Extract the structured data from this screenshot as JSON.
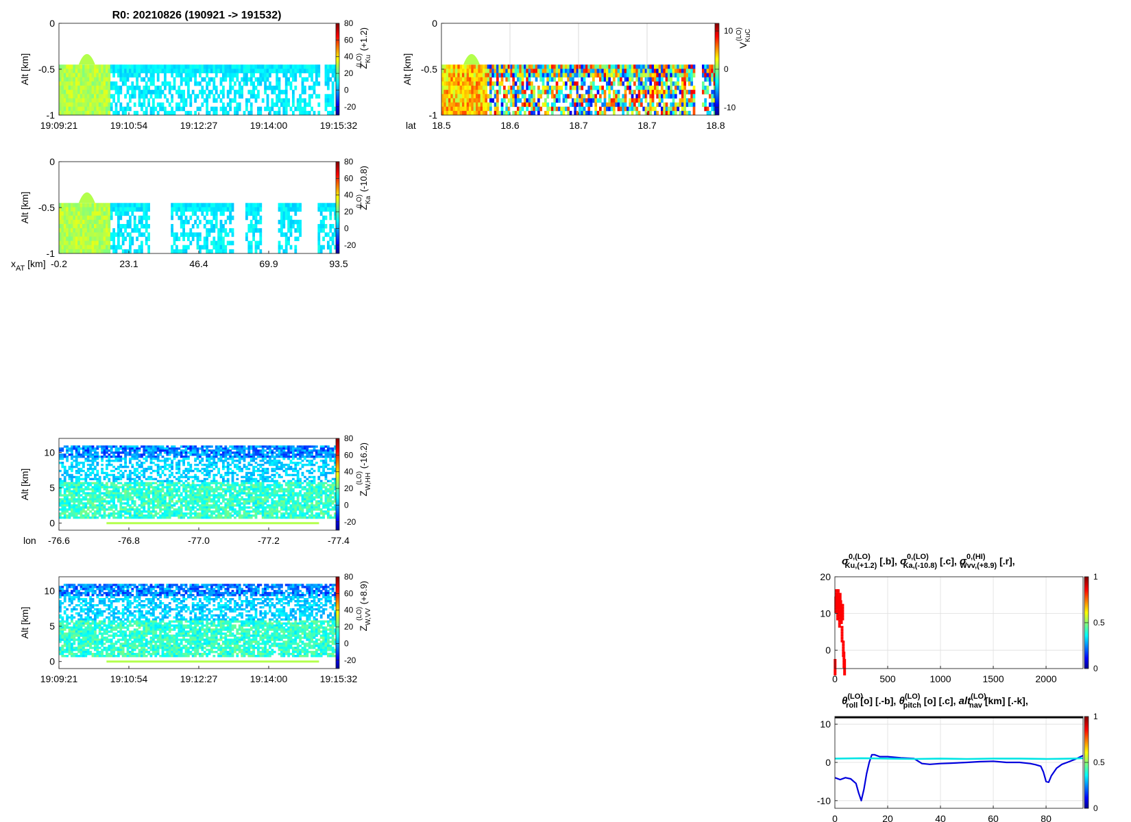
{
  "header": {
    "title": "R0:  20210826 (190921 -> 191532)"
  },
  "chart_data": [
    {
      "id": "zku",
      "type": "heatmap",
      "ylabel": "Alt [km]",
      "ylim": [
        -1,
        0
      ],
      "yticks": [
        0,
        -0.5,
        -1
      ],
      "xticklabels": [
        "19:09:21",
        "19:10:54",
        "19:12:27",
        "19:14:00",
        "19:15:32"
      ],
      "colorbar": {
        "label": "Z",
        "sup": "(LO)",
        "sub": "Ku",
        "offset": "(+1.2)",
        "range": [
          -30,
          80
        ],
        "ticks": [
          80,
          60,
          40,
          20,
          0,
          -20
        ]
      }
    },
    {
      "id": "vku",
      "type": "heatmap",
      "ylabel": "Alt [km]",
      "ylim": [
        -1,
        0
      ],
      "yticks": [
        0,
        -0.5,
        -1
      ],
      "xaxis_label": "lat",
      "xticklabels": [
        "18.5",
        "18.6",
        "18.7",
        "18.7",
        "18.8"
      ],
      "grid": true,
      "colorbar": {
        "label": "V",
        "sup": "(LO)",
        "sub": "KuC",
        "offset": "",
        "range": [
          -12,
          12
        ],
        "ticks": [
          10,
          0,
          -10
        ]
      }
    },
    {
      "id": "zka",
      "type": "heatmap",
      "ylabel": "Alt [km]",
      "ylim": [
        -1,
        0
      ],
      "yticks": [
        0,
        -0.5,
        -1
      ],
      "xaxis_label": "x",
      "xaxis_label_sub": "AT",
      "xaxis_label_unit": "[km]",
      "xticklabels": [
        "-0.2",
        "23.1",
        "46.4",
        "69.9",
        "93.5"
      ],
      "colorbar": {
        "label": "Z",
        "sup": "(LO)",
        "sub": "Ka",
        "offset": "(-10.8)",
        "range": [
          -30,
          80
        ],
        "ticks": [
          80,
          60,
          40,
          20,
          0,
          -20
        ]
      }
    },
    {
      "id": "zwhh",
      "type": "heatmap",
      "ylabel": "Alt [km]",
      "ylim": [
        -1,
        12
      ],
      "yticks": [
        10,
        5,
        0
      ],
      "xaxis_label": "lon",
      "xticklabels": [
        "-76.6",
        "-76.8",
        "-77.0",
        "-77.2",
        "-77.4"
      ],
      "colorbar": {
        "label": "Z",
        "sup": "(LO)",
        "sub": "W,HH",
        "offset": "(-16.2)",
        "range": [
          -30,
          80
        ],
        "ticks": [
          80,
          60,
          40,
          20,
          0,
          -20
        ]
      }
    },
    {
      "id": "zwvv",
      "type": "heatmap",
      "ylabel": "Alt [km]",
      "ylim": [
        -1,
        12
      ],
      "yticks": [
        10,
        5,
        0
      ],
      "xticklabels": [
        "19:09:21",
        "19:10:54",
        "19:12:27",
        "19:14:00",
        "19:15:32"
      ],
      "colorbar": {
        "label": "Z",
        "sup": "(LO)",
        "sub": "W,VV",
        "offset": "(+8.9)",
        "range": [
          -30,
          80
        ],
        "ticks": [
          80,
          60,
          40,
          20,
          0,
          -20
        ]
      }
    },
    {
      "id": "sigma",
      "type": "scatter",
      "title_parts": [
        {
          "sym": "σ",
          "sup": "0,(LO)",
          "sub": "Ku,(+1.2)",
          "tag": "[.b],",
          "color": "#0000ff"
        },
        {
          "sym": "σ",
          "sup": "0,(LO)",
          "sub": "Ka,(-10.8)",
          "tag": "[.c],",
          "color": "#00ffff"
        },
        {
          "sym": "σ",
          "sup": "0,(HI)",
          "sub": "Wvv,(+8.9)",
          "tag": "[.r],",
          "color": "#ff0000"
        }
      ],
      "xlim": [
        0,
        2350
      ],
      "ylim": [
        -5,
        20
      ],
      "xticks": [
        0,
        500,
        1000,
        1500,
        2000
      ],
      "yticks": [
        20,
        10,
        0
      ],
      "grid": true,
      "series": [
        {
          "color": "#ff0000",
          "x": [
            2,
            8,
            14,
            20,
            26,
            32,
            38,
            44,
            50,
            56,
            62,
            68,
            74,
            80,
            86,
            92
          ],
          "y": [
            -5,
            12,
            14,
            13,
            10,
            14,
            12,
            8,
            13,
            11,
            9,
            4,
            10,
            0,
            -3,
            -5
          ]
        }
      ],
      "colorbar": {
        "range": [
          0,
          1
        ],
        "ticks": [
          1,
          0.5,
          0
        ]
      }
    },
    {
      "id": "nav",
      "type": "line",
      "title_parts": [
        {
          "sym": "θ",
          "sup": "(LO)",
          "sub": "roll",
          "tag": "[o] [.-b],",
          "color": "#0000ff"
        },
        {
          "sym": "θ",
          "sup": "(LO)",
          "sub": "pitch",
          "tag": "[o] [.c],",
          "color": "#00ffff"
        },
        {
          "sym": "alt",
          "sup": "(LO)",
          "sub": "nav",
          "tag": "[km] [.-k],",
          "color": "#000000"
        }
      ],
      "xlim": [
        0,
        94
      ],
      "ylim": [
        -12,
        12
      ],
      "xticks": [
        0,
        20,
        40,
        60,
        80
      ],
      "yticks": [
        10,
        0,
        -10
      ],
      "grid": true,
      "series": [
        {
          "name": "roll",
          "color": "#0000dd",
          "x": [
            0,
            2,
            4,
            6,
            8,
            9,
            10,
            11,
            12,
            13,
            14,
            15,
            17,
            20,
            25,
            30,
            33,
            36,
            40,
            44,
            50,
            55,
            60,
            65,
            70,
            74,
            76,
            78,
            79,
            80,
            81,
            82,
            84,
            86,
            88,
            91,
            94
          ],
          "y": [
            -4,
            -4.5,
            -4,
            -4.3,
            -5.5,
            -8,
            -10,
            -7,
            -3,
            0,
            2,
            2,
            1.5,
            1.5,
            1.2,
            1,
            -0.3,
            -0.5,
            -0.3,
            -0.2,
            0,
            0.2,
            0.3,
            0,
            0,
            -0.3,
            -0.6,
            -1,
            -2.5,
            -5,
            -5.2,
            -3.5,
            -1.5,
            -0.5,
            0,
            0.8,
            1.8
          ]
        },
        {
          "name": "pitch",
          "color": "#00e5e5",
          "x": [
            0,
            10,
            20,
            30,
            40,
            50,
            60,
            70,
            80,
            90,
            94
          ],
          "y": [
            1,
            1.1,
            1,
            0.9,
            1,
            0.9,
            1,
            1,
            0.9,
            1,
            1.1
          ]
        },
        {
          "name": "alt",
          "color": "#000000",
          "x": [
            0,
            94
          ],
          "y": [
            11.8,
            11.8
          ]
        }
      ],
      "colorbar": {
        "range": [
          0,
          1
        ],
        "ticks": [
          1,
          0.5,
          0
        ]
      }
    }
  ]
}
